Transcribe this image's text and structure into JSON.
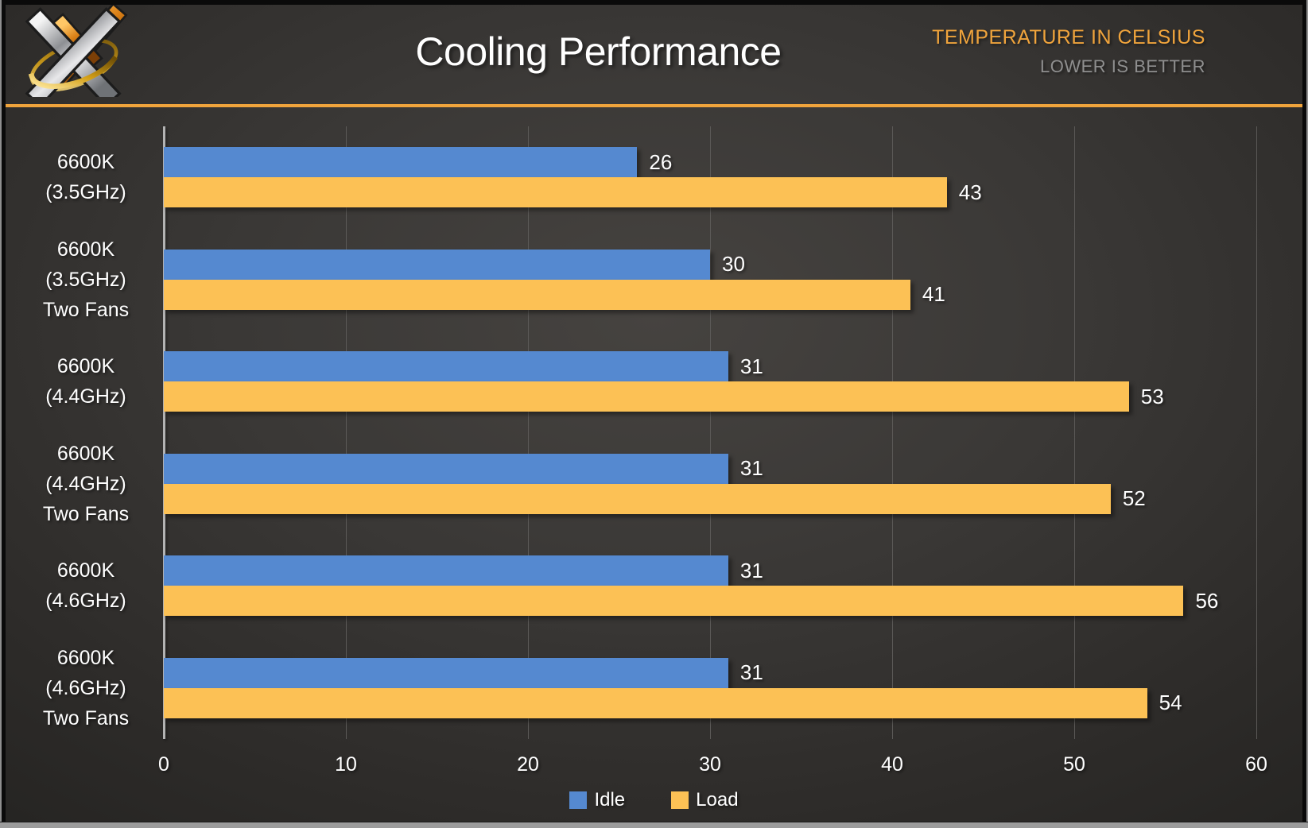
{
  "header": {
    "title": "Cooling Performance",
    "units_label": "TEMPERATURE IN CELSIUS",
    "note_label": "LOWER IS BETTER",
    "accent_color": "#F0A43C",
    "note_color": "#8F8F8F"
  },
  "chart_data": {
    "type": "bar",
    "orientation": "horizontal",
    "title": "Cooling Performance",
    "categories": [
      "6600K\n(3.5GHz)",
      "6600K\n(3.5GHz)\nTwo Fans",
      "6600K\n(4.4GHz)",
      "6600K\n(4.4GHz)\nTwo Fans",
      "6600K\n(4.6GHz)",
      "6600K\n(4.6GHz)\nTwo Fans"
    ],
    "series": [
      {
        "name": "Idle",
        "color": "#5589D0",
        "values": [
          26,
          30,
          31,
          31,
          31,
          31
        ]
      },
      {
        "name": "Load",
        "color": "#FCC155",
        "values": [
          43,
          41,
          53,
          52,
          56,
          54
        ]
      }
    ],
    "x_ticks": [
      0,
      10,
      20,
      30,
      40,
      50,
      60
    ],
    "xlim": [
      0,
      62.05
    ],
    "grid": true,
    "value_labels": true,
    "legend_position": "bottom",
    "gridline_color": "#5B5957",
    "axis_line_color": "#B3B3B3"
  },
  "legend": {
    "items": [
      {
        "label": "Idle",
        "color": "#5589D0"
      },
      {
        "label": "Load",
        "color": "#FCC155"
      }
    ]
  }
}
